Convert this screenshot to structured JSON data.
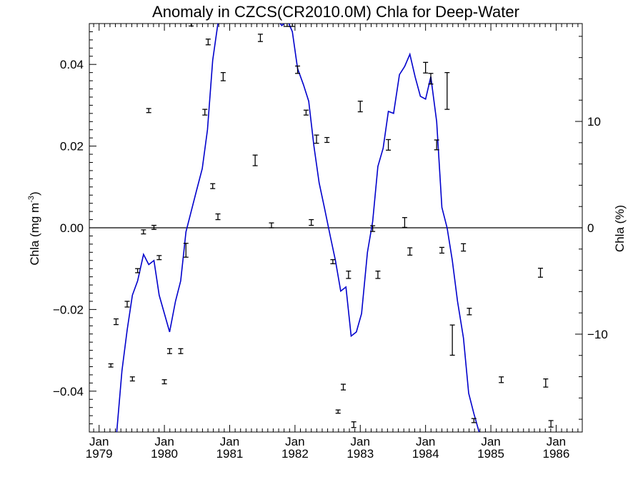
{
  "chart_data": {
    "type": "line",
    "title": "Anomaly in CZCS(CR2010.0M) Chla for Deep-Water",
    "ylabel_left_main": "Chla (mg m",
    "ylabel_left_sup": "-3",
    "ylabel_left_close": ")",
    "ylabel_right": "Chla (%)",
    "xlim": [
      1978.85,
      1986.4
    ],
    "ylim_left": [
      -0.05,
      0.05
    ],
    "ylim_right": [
      -19.2,
      19.2
    ],
    "x_ticks": [
      {
        "x": 1979.0,
        "month": "Jan",
        "year": "1979"
      },
      {
        "x": 1980.0,
        "month": "Jan",
        "year": "1980"
      },
      {
        "x": 1981.0,
        "month": "Jan",
        "year": "1981"
      },
      {
        "x": 1982.0,
        "month": "Jan",
        "year": "1982"
      },
      {
        "x": 1983.0,
        "month": "Jan",
        "year": "1983"
      },
      {
        "x": 1984.0,
        "month": "Jan",
        "year": "1984"
      },
      {
        "x": 1985.0,
        "month": "Jan",
        "year": "1985"
      },
      {
        "x": 1986.0,
        "month": "Jan",
        "year": "1986"
      }
    ],
    "y_ticks_left": [
      {
        "v": -0.04,
        "label": "−0.04"
      },
      {
        "v": -0.02,
        "label": "−0.02"
      },
      {
        "v": 0.0,
        "label": "0.00"
      },
      {
        "v": 0.02,
        "label": "0.02"
      },
      {
        "v": 0.04,
        "label": "0.04"
      }
    ],
    "y_ticks_right": [
      {
        "v": -10,
        "label": "−10"
      },
      {
        "v": 0,
        "label": "0"
      },
      {
        "v": 10,
        "label": "10"
      }
    ],
    "zero_line": 0.0,
    "series": [
      {
        "style": "line",
        "color": "#0000cc",
        "axis": "left",
        "x": [
          1979.27,
          1979.35,
          1979.43,
          1979.51,
          1979.59,
          1979.68,
          1979.76,
          1979.84,
          1979.92,
          1980.0,
          1980.08,
          1980.17,
          1980.25,
          1980.33,
          1980.41,
          1980.49,
          1980.58,
          1980.66,
          1980.74,
          1980.82,
          1980.9,
          1980.98,
          1981.07,
          1981.15,
          1981.23,
          1981.31,
          1981.39,
          1981.47,
          1981.56,
          1981.64,
          1981.72,
          1981.8,
          1981.88,
          1981.96,
          1982.04,
          1982.13,
          1982.21,
          1982.29,
          1982.37,
          1982.45,
          1982.54,
          1982.62,
          1982.7,
          1982.78,
          1982.86,
          1982.94,
          1983.02,
          1983.11,
          1983.19,
          1983.27,
          1983.35,
          1983.43,
          1983.51,
          1983.6,
          1983.68,
          1983.76,
          1983.84,
          1983.92,
          1984.0,
          1984.08,
          1984.17,
          1984.25,
          1984.33,
          1984.41,
          1984.49,
          1984.58,
          1984.66,
          1984.74,
          1984.82,
          1984.9
        ],
        "y": [
          -0.05,
          -0.035,
          -0.025,
          -0.0165,
          -0.013,
          -0.0065,
          -0.009,
          -0.008,
          -0.0165,
          -0.021,
          -0.0255,
          -0.018,
          -0.013,
          -0.001,
          0.004,
          0.009,
          0.0145,
          0.024,
          0.041,
          0.05,
          0.052,
          0.056,
          0.056,
          0.056,
          0.056,
          0.056,
          0.056,
          0.053,
          0.052,
          0.052,
          0.051,
          0.0495,
          0.051,
          0.048,
          0.039,
          0.035,
          0.031,
          0.02,
          0.011,
          0.005,
          -0.002,
          -0.008,
          -0.0155,
          -0.0145,
          -0.0265,
          -0.0255,
          -0.021,
          -0.006,
          0.0015,
          0.015,
          0.0195,
          0.0285,
          0.028,
          0.0375,
          0.0395,
          0.0425,
          0.037,
          0.0322,
          0.0315,
          0.037,
          0.026,
          0.005,
          0.0,
          -0.008,
          -0.018,
          -0.027,
          -0.0405,
          -0.0455,
          -0.05,
          -0.052
        ]
      },
      {
        "style": "errorbar",
        "color": "#000000",
        "axis": "left",
        "points": [
          {
            "x": 1979.18,
            "y": -0.0337,
            "e": 0.0004
          },
          {
            "x": 1979.26,
            "y": -0.023,
            "e": 0.0007
          },
          {
            "x": 1979.43,
            "y": -0.0187,
            "e": 0.0007
          },
          {
            "x": 1979.51,
            "y": -0.037,
            "e": 0.0005
          },
          {
            "x": 1979.59,
            "y": -0.0105,
            "e": 0.0005
          },
          {
            "x": 1979.68,
            "y": -0.001,
            "e": 0.0005
          },
          {
            "x": 1979.76,
            "y": 0.0287,
            "e": 0.0005
          },
          {
            "x": 1979.84,
            "y": 0.0001,
            "e": 0.0005
          },
          {
            "x": 1979.92,
            "y": -0.0073,
            "e": 0.0005
          },
          {
            "x": 1980.0,
            "y": -0.0377,
            "e": 0.0005
          },
          {
            "x": 1980.08,
            "y": -0.0302,
            "e": 0.0006
          },
          {
            "x": 1980.25,
            "y": -0.0302,
            "e": 0.0006
          },
          {
            "x": 1980.33,
            "y": -0.0055,
            "e": 0.0017
          },
          {
            "x": 1980.41,
            "y": 0.05,
            "e": 0.0006
          },
          {
            "x": 1980.62,
            "y": 0.0283,
            "e": 0.0007
          },
          {
            "x": 1980.67,
            "y": 0.0455,
            "e": 0.0007
          },
          {
            "x": 1980.74,
            "y": 0.0102,
            "e": 0.0006
          },
          {
            "x": 1980.82,
            "y": 0.0027,
            "e": 0.0007
          },
          {
            "x": 1980.9,
            "y": 0.037,
            "e": 0.001
          },
          {
            "x": 1981.39,
            "y": 0.0165,
            "e": 0.0013
          },
          {
            "x": 1981.47,
            "y": 0.0465,
            "e": 0.0009
          },
          {
            "x": 1981.64,
            "y": 0.0006,
            "e": 0.0006
          },
          {
            "x": 1981.88,
            "y": 0.05,
            "e": 0.0007
          },
          {
            "x": 1981.96,
            "y": 0.05,
            "e": 0.0007
          },
          {
            "x": 1982.04,
            "y": 0.0387,
            "e": 0.0009
          },
          {
            "x": 1982.17,
            "y": 0.0282,
            "e": 0.0006
          },
          {
            "x": 1982.25,
            "y": 0.0013,
            "e": 0.0007
          },
          {
            "x": 1982.33,
            "y": 0.0217,
            "e": 0.001
          },
          {
            "x": 1982.49,
            "y": 0.0215,
            "e": 0.0006
          },
          {
            "x": 1982.58,
            "y": -0.0083,
            "e": 0.0005
          },
          {
            "x": 1982.66,
            "y": -0.045,
            "e": 0.0004
          },
          {
            "x": 1982.74,
            "y": -0.039,
            "e": 0.0007
          },
          {
            "x": 1982.82,
            "y": -0.0115,
            "e": 0.0009
          },
          {
            "x": 1982.9,
            "y": -0.0482,
            "e": 0.0007
          },
          {
            "x": 1983.0,
            "y": 0.0297,
            "e": 0.0013
          },
          {
            "x": 1983.19,
            "y": -0.0002,
            "e": 0.0007
          },
          {
            "x": 1983.27,
            "y": -0.0115,
            "e": 0.0009
          },
          {
            "x": 1983.43,
            "y": 0.0203,
            "e": 0.0013
          },
          {
            "x": 1983.68,
            "y": 0.0013,
            "e": 0.0012
          },
          {
            "x": 1983.76,
            "y": -0.0058,
            "e": 0.0009
          },
          {
            "x": 1984.0,
            "y": 0.0392,
            "e": 0.0013
          },
          {
            "x": 1984.08,
            "y": 0.0365,
            "e": 0.0013
          },
          {
            "x": 1984.17,
            "y": 0.0203,
            "e": 0.0012
          },
          {
            "x": 1984.25,
            "y": -0.0055,
            "e": 0.0007
          },
          {
            "x": 1984.33,
            "y": 0.0335,
            "e": 0.0045
          },
          {
            "x": 1984.41,
            "y": -0.0275,
            "e": 0.0037
          },
          {
            "x": 1984.58,
            "y": -0.0048,
            "e": 0.0009
          },
          {
            "x": 1984.67,
            "y": -0.0205,
            "e": 0.0008
          },
          {
            "x": 1984.74,
            "y": -0.0472,
            "e": 0.0005
          },
          {
            "x": 1985.16,
            "y": -0.0372,
            "e": 0.0007
          },
          {
            "x": 1985.76,
            "y": -0.011,
            "e": 0.0011
          },
          {
            "x": 1985.84,
            "y": -0.038,
            "e": 0.001
          },
          {
            "x": 1985.92,
            "y": -0.048,
            "e": 0.0008
          }
        ]
      }
    ]
  }
}
